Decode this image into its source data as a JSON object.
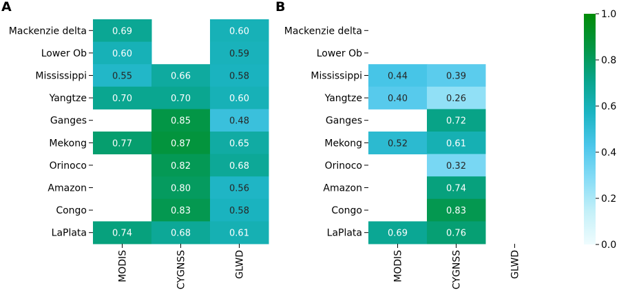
{
  "chart_data": [
    {
      "type": "heatmap",
      "panel": "A",
      "rows": [
        "Mackenzie delta",
        "Lower Ob",
        "Mississippi",
        "Yangtze",
        "Ganges",
        "Mekong",
        "Orinoco",
        "Amazon",
        "Congo",
        "LaPlata"
      ],
      "columns": [
        "MODIS",
        "CYGNSS",
        "GLWD"
      ],
      "values": [
        [
          0.69,
          null,
          0.6
        ],
        [
          0.6,
          null,
          0.59
        ],
        [
          0.55,
          0.66,
          0.58
        ],
        [
          0.7,
          0.7,
          0.6
        ],
        [
          null,
          0.85,
          0.48
        ],
        [
          0.77,
          0.87,
          0.65
        ],
        [
          null,
          0.82,
          0.68
        ],
        [
          null,
          0.8,
          0.56
        ],
        [
          null,
          0.83,
          0.58
        ],
        [
          0.74,
          0.68,
          0.61
        ]
      ],
      "labels": [
        [
          "0.69",
          null,
          "0.60"
        ],
        [
          "0.60",
          null,
          "0.59"
        ],
        [
          "0.55",
          "0.66",
          "0.58"
        ],
        [
          "0.70",
          "0.70",
          "0.60"
        ],
        [
          null,
          "0.85",
          "0.48"
        ],
        [
          "0.77",
          "0.87",
          "0.65"
        ],
        [
          null,
          "0.82",
          "0.68"
        ],
        [
          null,
          "0.80",
          "0.56"
        ],
        [
          null,
          "0.83",
          "0.58"
        ],
        [
          "0.74",
          "0.68",
          "0.61"
        ]
      ]
    },
    {
      "type": "heatmap",
      "panel": "B",
      "rows": [
        "Mackenzie delta",
        "Lower Ob",
        "Mississippi",
        "Yangtze",
        "Ganges",
        "Mekong",
        "Orinoco",
        "Amazon",
        "Congo",
        "LaPlata"
      ],
      "columns": [
        "MODIS",
        "CYGNSS",
        "GLWD"
      ],
      "values": [
        [
          null,
          null,
          null
        ],
        [
          null,
          null,
          null
        ],
        [
          0.44,
          0.39,
          null
        ],
        [
          0.4,
          0.26,
          null
        ],
        [
          null,
          0.72,
          null
        ],
        [
          0.52,
          0.61,
          null
        ],
        [
          null,
          0.32,
          null
        ],
        [
          null,
          0.74,
          null
        ],
        [
          null,
          0.83,
          null
        ],
        [
          0.69,
          0.76,
          null
        ]
      ],
      "labels": [
        [
          null,
          null,
          null
        ],
        [
          null,
          null,
          null
        ],
        [
          "0.44",
          "0.39",
          null
        ],
        [
          "0.40",
          "0.26",
          null
        ],
        [
          null,
          "0.72",
          null
        ],
        [
          "0.52",
          "0.61",
          null
        ],
        [
          null,
          "0.32",
          null
        ],
        [
          null,
          "0.74",
          null
        ],
        [
          null,
          "0.83",
          null
        ],
        [
          "0.69",
          "0.76",
          null
        ]
      ]
    }
  ],
  "colorbar": {
    "range": [
      0.0,
      1.0
    ],
    "ticks": [
      "0.0",
      "0.2",
      "0.4",
      "0.6",
      "0.8",
      "1.0"
    ],
    "tick_values": [
      0.0,
      0.2,
      0.4,
      0.6,
      0.8,
      1.0
    ],
    "colors": [
      "#effcfe",
      "#c4f0f8",
      "#86dcf6",
      "#4bc6ea",
      "#1bb4c2",
      "#08a48a",
      "#039542",
      "#018b08"
    ]
  }
}
